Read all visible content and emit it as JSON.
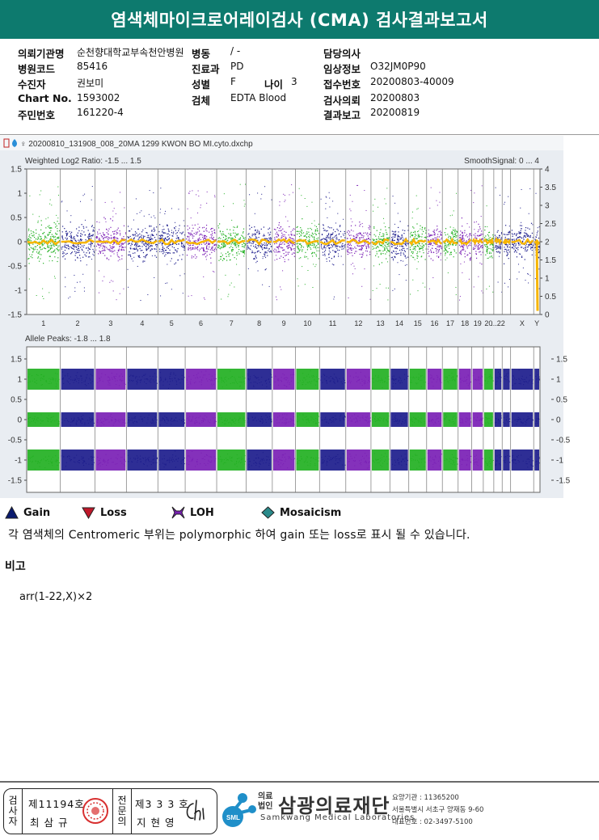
{
  "header": {
    "title": "염색체마이크로어레이검사 (CMA) 검사결과보고서"
  },
  "info": {
    "rows": [
      {
        "l1": "의뢰기관명",
        "v1": "순천향대학교부속천안병원",
        "l2": "병동",
        "v2": "/ -",
        "l3": "",
        "v3": "",
        "l4": "담당의사",
        "v4": ""
      },
      {
        "l1": "병원코드",
        "v1": "85416",
        "l2": "진료과",
        "v2": "PD",
        "l3": "",
        "v3": "",
        "l4": "임상정보",
        "v4": "O32JM0P90"
      },
      {
        "l1": "수진자",
        "v1": "권보미",
        "l2": "성별",
        "v2": "F",
        "l3": "나이",
        "v3": "3",
        "l4": "접수번호",
        "v4": "20200803-40009"
      },
      {
        "l1": "Chart No.",
        "v1": "1593002",
        "l2": "검체",
        "v2": "EDTA Blood",
        "l3": "",
        "v3": "",
        "l4": "검사의뢰",
        "v4": "20200803"
      },
      {
        "l1": "주민번호",
        "v1": "161220-4",
        "l2": "",
        "v2": "",
        "l3": "",
        "v3": "",
        "l4": "결과보고",
        "v4": "20200819"
      }
    ]
  },
  "plot": {
    "file_label": "♀ 20200810_131908_008_20MA 1299 KWON BO MI.cyto.dxchp",
    "top_title": "Weighted Log2 Ratio: -1.5 ... 1.5",
    "top_right_title": "SmoothSignal: 0 ... 4",
    "bottom_title": "Allele Peaks: -1.8 ... 1.8",
    "top_left_ticks": [
      "1.5",
      "1",
      "0.5",
      "0",
      "-0.5",
      "-1",
      "-1.5"
    ],
    "top_right_ticks": [
      "4",
      "3.5",
      "3",
      "2.5",
      "2",
      "1.5",
      "1",
      "0.5",
      "0"
    ],
    "bottom_left_ticks": [
      "1.5",
      "1",
      "0.5",
      "0",
      "-0.5",
      "-1",
      "-1.5"
    ],
    "bottom_right_ticks": [
      "1.5",
      "1",
      "0.5",
      "0",
      "-0.5",
      "-1",
      "-1.5"
    ],
    "chromosomes": [
      "1",
      "2",
      "3",
      "4",
      "5",
      "6",
      "7",
      "8",
      "9",
      "10",
      "11",
      "12",
      "13",
      "14",
      "15",
      "16",
      "17",
      "18",
      "19",
      "20",
      "21",
      "22",
      "X",
      "Y"
    ],
    "chrom_labels": [
      "1",
      "2",
      "3",
      "4",
      "5",
      "6",
      "7",
      "8",
      "9",
      "10",
      "11",
      "12",
      "13",
      "14",
      "15",
      "16",
      "17",
      "18",
      "19",
      "20",
      "...22",
      "",
      "X",
      "Y"
    ],
    "chrom_widths": [
      32,
      33,
      30,
      30,
      26,
      30,
      28,
      25,
      22,
      23,
      25,
      24,
      18,
      18,
      17,
      15,
      15,
      13,
      11,
      10,
      8,
      8,
      22,
      6
    ],
    "colors": {
      "green": "#22b022",
      "navy": "#1c1c8c",
      "purple": "#7a1fb5",
      "orange": "#f7b500",
      "header_bg": "#0d7a6e"
    }
  },
  "legend": [
    {
      "label": "Gain",
      "icon": "triangle-up-icon",
      "color": "#0a1a6e"
    },
    {
      "label": "Loss",
      "icon": "triangle-down-icon",
      "color": "#c0182a"
    },
    {
      "label": "LOH",
      "icon": "loh-icon",
      "color": "#7a1fb5"
    },
    {
      "label": "Mosaicism",
      "icon": "diamond-icon",
      "color": "#2a8a8a"
    }
  ],
  "note": "각 염색체의 Centromeric 부위는 polymorphic 하여 gain 또는 loss로 표시 될 수 있습니다.",
  "remark": {
    "title": "비고",
    "body": "arr(1-22,X)×2"
  },
  "footer": {
    "examiner_label": [
      "검",
      "사",
      "자"
    ],
    "examiner_no": "제11194호",
    "examiner_name": "최 삼 규",
    "specialist_label": [
      "전",
      "문",
      "의"
    ],
    "specialist_no": "제3 3 3 호",
    "specialist_name": "지 현 영",
    "org_small": [
      "의료",
      "법인"
    ],
    "org_name": "삼광의료재단",
    "org_en": "Samkwang Medical Laboratories",
    "logo_text": "SML",
    "contact": [
      "요양기관 : 11365200",
      "서울특별시 서초구 양재동 9-60",
      "대표번호 : 02-3497-5100"
    ]
  }
}
